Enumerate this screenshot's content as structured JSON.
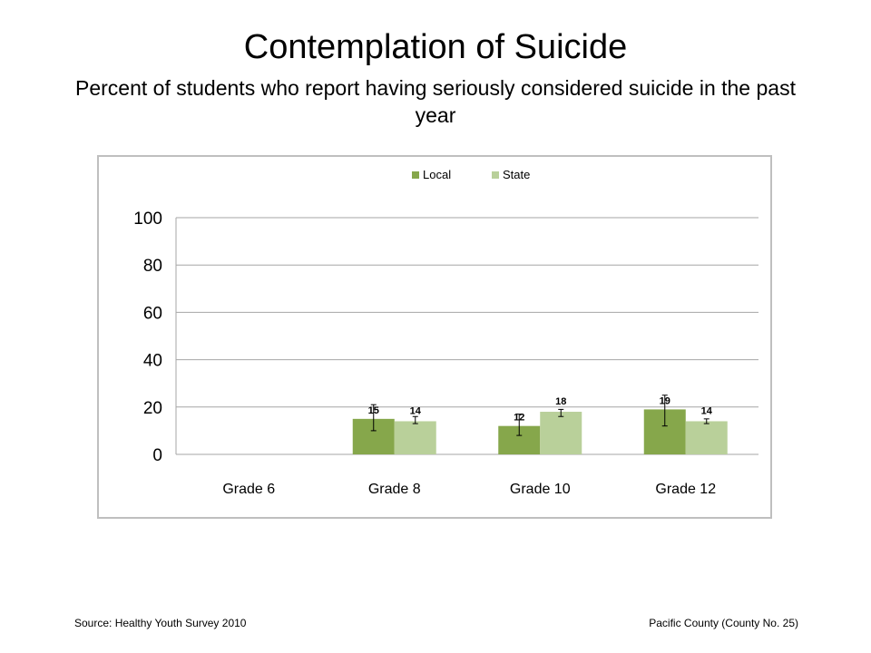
{
  "slide": {
    "title": "Contemplation of Suicide",
    "subtitle": "Percent of students who report having seriously considered suicide in the past year"
  },
  "footer": {
    "source": "Source: Healthy Youth Survey 2010",
    "county": "Pacific County (County No. 25)"
  },
  "chart_data": {
    "type": "bar",
    "categories": [
      "Grade 6",
      "Grade 8",
      "Grade 10",
      "Grade 12"
    ],
    "series": [
      {
        "name": "Local",
        "color": "#86a74b",
        "values": [
          null,
          15,
          12,
          19
        ],
        "labels": [
          "",
          "15",
          "12",
          "19"
        ],
        "error_low": [
          null,
          10,
          8,
          12
        ],
        "error_high": [
          null,
          21,
          17,
          25
        ]
      },
      {
        "name": "State",
        "color": "#b9d09a",
        "values": [
          null,
          14,
          18,
          14
        ],
        "labels": [
          "",
          "14",
          "18",
          "14"
        ],
        "error_low": [
          null,
          13,
          16,
          13
        ],
        "error_high": [
          null,
          16,
          19,
          15
        ]
      }
    ],
    "ylim": [
      0,
      100
    ],
    "yticks": [
      0,
      20,
      40,
      60,
      80,
      100
    ],
    "grid": true,
    "legend": "top-center",
    "xlabel": "",
    "ylabel": ""
  }
}
